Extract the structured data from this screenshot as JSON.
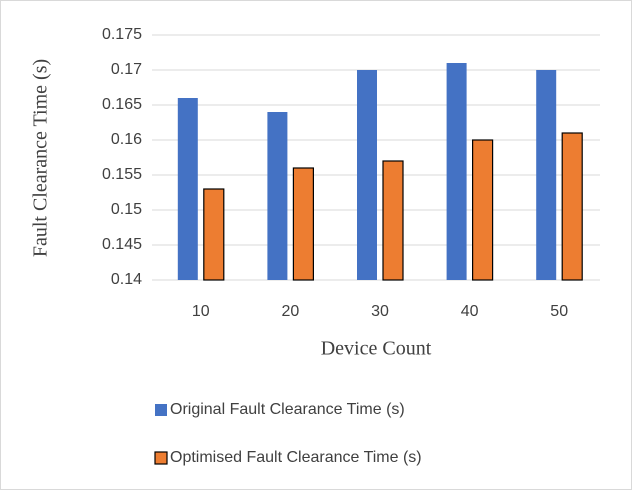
{
  "chart_data": {
    "type": "bar",
    "x_label": "Device Count",
    "y_label": "Fault Clearance  Time (s)",
    "categories": [
      "10",
      "20",
      "30",
      "40",
      "50"
    ],
    "series": [
      {
        "name": "Original Fault Clearance Time (s)",
        "color": "#4472c4",
        "values": [
          0.166,
          0.164,
          0.17,
          0.171,
          0.17
        ]
      },
      {
        "name": "Optimised Fault Clearance Time (s)",
        "color": "#ed7d31",
        "values": [
          0.153,
          0.156,
          0.157,
          0.16,
          0.161
        ]
      }
    ],
    "ylim": [
      0.14,
      0.175
    ],
    "yticks": [
      0.14,
      0.145,
      0.15,
      0.155,
      0.16,
      0.165,
      0.17,
      0.175
    ],
    "grid": true,
    "legend": "bottom"
  }
}
